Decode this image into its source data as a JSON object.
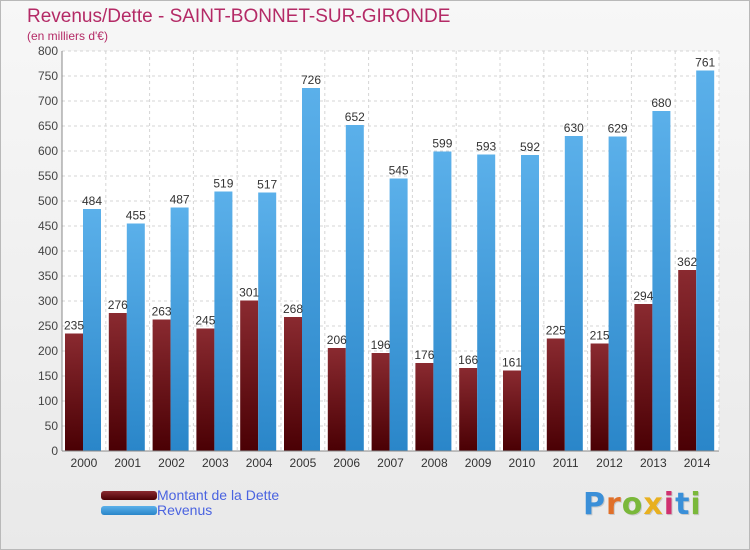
{
  "header": {
    "title": "Revenus/Dette - SAINT-BONNET-SUR-GIRONDE",
    "subtitle": "(en milliers d'€)"
  },
  "logo": {
    "text": "Proxiti"
  },
  "colors": {
    "dette": "#6b1016",
    "revenus": "#3d9ee0",
    "title": "#b42a66"
  },
  "chart_data": {
    "type": "bar",
    "categories": [
      "2000",
      "2001",
      "2002",
      "2003",
      "2004",
      "2005",
      "2006",
      "2007",
      "2008",
      "2009",
      "2010",
      "2011",
      "2012",
      "2013",
      "2014"
    ],
    "series": [
      {
        "name": "Montant de la Dette",
        "values": [
          235,
          276,
          263,
          245,
          301,
          268,
          206,
          196,
          176,
          166,
          161,
          225,
          215,
          294,
          362
        ]
      },
      {
        "name": "Revenus",
        "values": [
          484,
          455,
          487,
          519,
          517,
          726,
          652,
          545,
          599,
          593,
          592,
          630,
          629,
          680,
          761
        ]
      }
    ],
    "ylim": [
      0,
      800
    ],
    "yticks": [
      0,
      50,
      100,
      150,
      200,
      250,
      300,
      350,
      400,
      450,
      500,
      550,
      600,
      650,
      700,
      750,
      800
    ],
    "grid": true,
    "legend": "bottom-left"
  }
}
